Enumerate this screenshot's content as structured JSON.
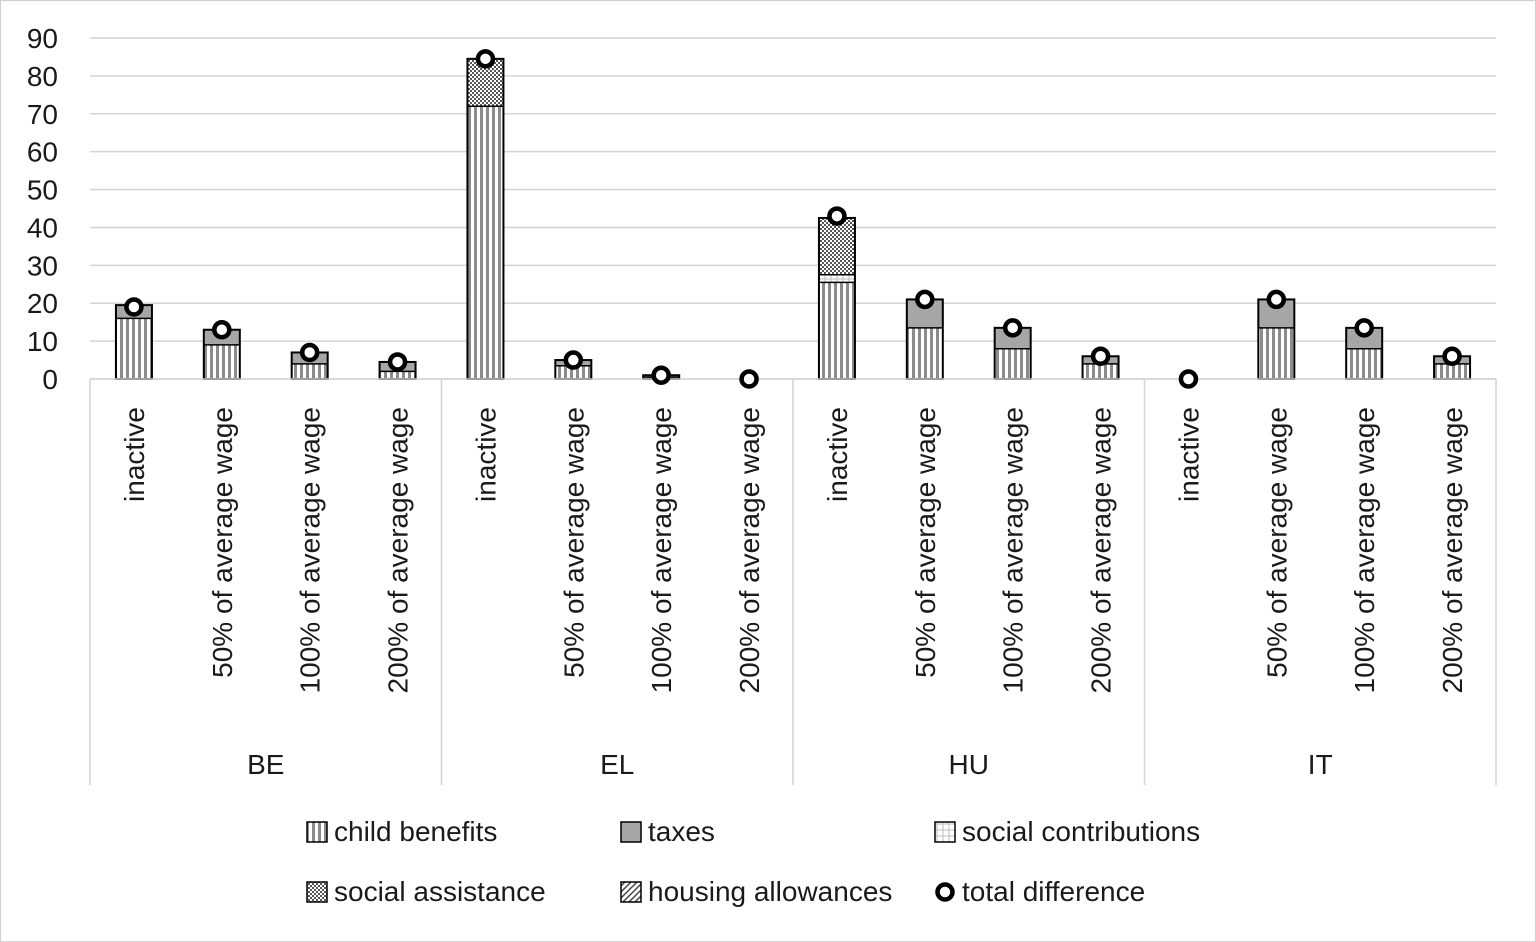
{
  "chart_data": {
    "type": "bar",
    "stacked": true,
    "ylim": [
      0,
      90
    ],
    "yticks": [
      0,
      10,
      20,
      30,
      40,
      50,
      60,
      70,
      80,
      90
    ],
    "grid": true,
    "groups": [
      "BE",
      "EL",
      "HU",
      "IT"
    ],
    "subcategories": [
      "inactive",
      "50% of average wage",
      "100% of average wage",
      "200% of average wage"
    ],
    "series": [
      {
        "name": "child benefits",
        "pattern": "vertical-stripes",
        "values": [
          [
            16,
            9,
            4,
            2
          ],
          [
            72,
            3.5,
            0.5,
            0
          ],
          [
            25.5,
            13.5,
            8,
            4
          ],
          [
            0,
            13.5,
            8,
            4
          ]
        ]
      },
      {
        "name": "taxes",
        "pattern": "solid-gray",
        "values": [
          [
            3.5,
            4,
            3,
            2.5
          ],
          [
            0,
            1.5,
            0.5,
            0
          ],
          [
            0,
            7.5,
            5.5,
            2
          ],
          [
            0,
            7.5,
            5.5,
            2
          ]
        ]
      },
      {
        "name": "social contributions",
        "pattern": "grid",
        "values": [
          [
            0,
            0,
            0,
            0
          ],
          [
            0,
            0,
            0,
            0
          ],
          [
            2,
            0,
            0,
            0
          ],
          [
            0,
            0,
            0,
            0
          ]
        ]
      },
      {
        "name": "social assistance",
        "pattern": "dots",
        "values": [
          [
            0,
            0,
            0,
            0
          ],
          [
            12.5,
            0,
            0,
            0
          ],
          [
            15,
            0,
            0,
            0
          ],
          [
            0,
            0,
            0,
            0
          ]
        ]
      },
      {
        "name": "housing allowances",
        "pattern": "diagonal",
        "values": [
          [
            0,
            0,
            0,
            0
          ],
          [
            0,
            0,
            0,
            0
          ],
          [
            0,
            0,
            0,
            0
          ],
          [
            0,
            0,
            0,
            0
          ]
        ]
      }
    ],
    "markers": {
      "name": "total difference",
      "values": [
        [
          19,
          13,
          7,
          4.5
        ],
        [
          84.5,
          5,
          1,
          0
        ],
        [
          43,
          21,
          13.5,
          6
        ],
        [
          0,
          21,
          13.5,
          6
        ]
      ]
    },
    "legend_position": "bottom"
  },
  "legend": [
    {
      "label": "child benefits",
      "pattern": "vertical-stripes"
    },
    {
      "label": "taxes",
      "pattern": "solid-gray"
    },
    {
      "label": "social contributions",
      "pattern": "grid"
    },
    {
      "label": "social assistance",
      "pattern": "dots"
    },
    {
      "label": "housing allowances",
      "pattern": "diagonal"
    },
    {
      "label": "total difference",
      "pattern": "marker"
    }
  ]
}
